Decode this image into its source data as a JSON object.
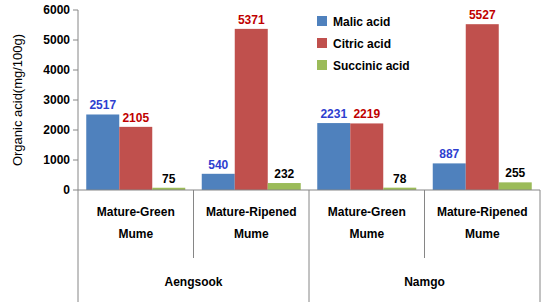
{
  "chart_data": {
    "type": "bar",
    "y_label": "Organic acid(mg/100g)",
    "categories": [
      "Mature-Green Mume",
      "Mature-Ripened Mume",
      "Mature-Green Mume",
      "Mature-Ripened Mume"
    ],
    "category_groups": [
      "Aengsook",
      "Aengsook",
      "Namgo",
      "Namgo"
    ],
    "series": [
      {
        "name": "Malic acid",
        "color": "#4f81bd",
        "values": [
          2517,
          540,
          2231,
          887
        ]
      },
      {
        "name": "Citric acid",
        "color": "#c0504d",
        "values": [
          2105,
          5371,
          2219,
          5527
        ]
      },
      {
        "name": "Succinic acid",
        "color": "#9bbb59",
        "values": [
          75,
          232,
          78,
          255
        ]
      }
    ],
    "ylim": [
      0,
      6000
    ],
    "yticks": [
      0,
      1000,
      2000,
      3000,
      4000,
      5000,
      6000
    ],
    "data_labels": true,
    "legend": "top-right",
    "grid": false
  }
}
